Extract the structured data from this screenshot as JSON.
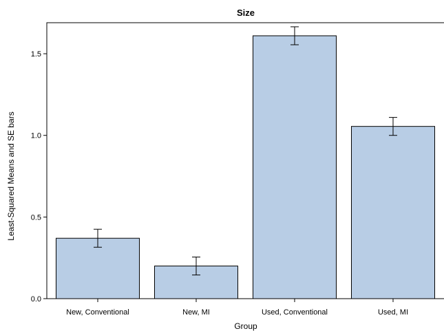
{
  "chart_data": {
    "type": "bar",
    "title": "Size",
    "xlabel": "Group",
    "ylabel": "Least-Squared Means and SE bars",
    "categories": [
      "New, Conventional",
      "New, MI",
      "Used, Conventional",
      "Used, MI"
    ],
    "values": [
      0.37,
      0.2,
      1.61,
      1.055
    ],
    "se": [
      0.055,
      0.055,
      0.055,
      0.055
    ],
    "ylim": [
      0,
      1.69
    ],
    "yticks": [
      0.0,
      0.5,
      1.0,
      1.5
    ],
    "ytick_labels": [
      "0.0",
      "0.5",
      "1.0",
      "1.5"
    ],
    "bar_color": "#b8cde5",
    "grid": false,
    "legend": "none"
  }
}
